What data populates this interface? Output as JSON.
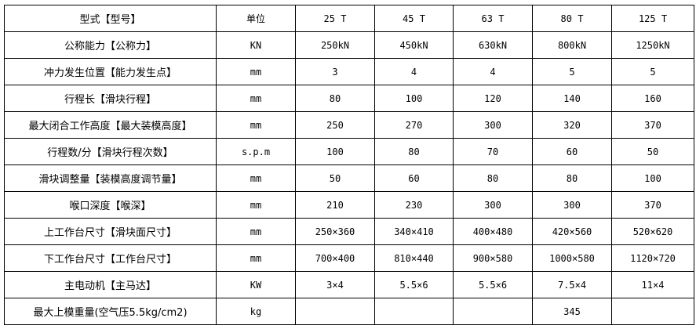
{
  "header": [
    "型式【型号】",
    "单位",
    "25 T",
    "45 T",
    "63 T",
    "80 T",
    "125 T"
  ],
  "rows": [
    [
      "公称能力【公称力】",
      "KN",
      "250kN",
      "450kN",
      "630kN",
      "800kN",
      "1250kN"
    ],
    [
      "冲力发生位置【能力发生点】",
      "mm",
      "3",
      "4",
      "4",
      "5",
      "5"
    ],
    [
      "行程长【滑块行程】",
      "mm",
      "80",
      "100",
      "120",
      "140",
      "160"
    ],
    [
      "最大闭合工作高度【最大装模高度】",
      "mm",
      "250",
      "270",
      "300",
      "320",
      "370"
    ],
    [
      "行程数/分【滑块行程次数】",
      "s.p.m",
      "100",
      "80",
      "70",
      "60",
      "50"
    ],
    [
      "滑块调整量【装模高度调节量】",
      "mm",
      "50",
      "60",
      "80",
      "80",
      "100"
    ],
    [
      "喉口深度【喉深】",
      "mm",
      "210",
      "230",
      "300",
      "300",
      "370"
    ],
    [
      "上工作台尺寸【滑块面尺寸】",
      "mm",
      "250×360",
      "340×410",
      "400×480",
      "420×560",
      "520×620"
    ],
    [
      "下工作台尺寸【工作台尺寸】",
      "mm",
      "700×400",
      "810×440",
      "900×580",
      "1000×580",
      "1120×720"
    ],
    [
      "主电动机【主马达】",
      "KW",
      "3×4",
      "5.5×6",
      "5.5×6",
      "7.5×4",
      "11×4"
    ],
    [
      "最大上模重量(空气压5.5kg/cm2)",
      "kg",
      "",
      "",
      "",
      "345",
      ""
    ]
  ]
}
